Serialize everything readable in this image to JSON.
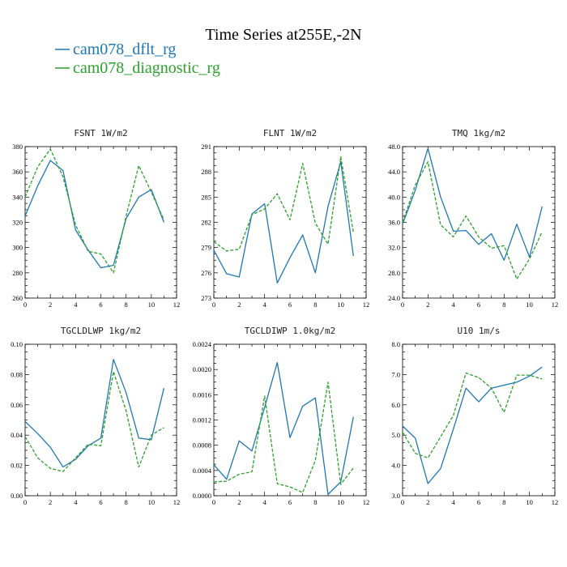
{
  "figure": {
    "title": "Time Series at255E,-2N",
    "legend": [
      {
        "label": "cam078_dflt_rg",
        "color": "#1f77b4",
        "dash": "none"
      },
      {
        "label": "cam078_diagnostic_rg",
        "color": "#2ca02c",
        "dash": "4,2"
      }
    ]
  },
  "chart_data": [
    {
      "type": "line",
      "title": "FSNT   1W/m2",
      "xlim": [
        0,
        12
      ],
      "xticks": [
        0,
        2,
        4,
        6,
        8,
        10,
        12
      ],
      "ylim": [
        260,
        380
      ],
      "yticks": [
        260,
        280,
        300,
        320,
        340,
        360,
        380
      ],
      "yticklabels": [
        "260",
        "280",
        "300",
        "320",
        "340",
        "360",
        "380"
      ],
      "x": [
        0,
        1,
        2,
        3,
        4,
        5,
        6,
        7,
        8,
        9,
        10,
        11
      ],
      "series": [
        {
          "name": "cam078_dflt_rg",
          "values": [
            325,
            349,
            369,
            361,
            314,
            298,
            284,
            286,
            323,
            340,
            346,
            320
          ]
        },
        {
          "name": "cam078_diagnostic_rg",
          "values": [
            340,
            364,
            378,
            356,
            318,
            297,
            295,
            280,
            325,
            365,
            344,
            322
          ]
        }
      ]
    },
    {
      "type": "line",
      "title": "FLNT   1W/m2",
      "xlim": [
        0,
        12
      ],
      "xticks": [
        0,
        2,
        4,
        6,
        8,
        10,
        12
      ],
      "ylim": [
        273,
        291
      ],
      "yticks": [
        273,
        276,
        279,
        282,
        285,
        288,
        291
      ],
      "yticklabels": [
        "273",
        "276",
        "279",
        "282",
        "285",
        "288",
        "291"
      ],
      "x": [
        0,
        1,
        2,
        3,
        4,
        5,
        6,
        7,
        8,
        9,
        10,
        11
      ],
      "series": [
        {
          "name": "cam078_dflt_rg",
          "values": [
            278.7,
            275.9,
            275.5,
            283.0,
            284.2,
            274.8,
            277.8,
            280.5,
            276.0,
            283.9,
            289.2,
            278.0
          ]
        },
        {
          "name": "cam078_diagnostic_rg",
          "values": [
            279.7,
            278.6,
            278.8,
            282.9,
            283.6,
            285.4,
            282.3,
            289.0,
            281.9,
            279.4,
            289.8,
            280.8
          ]
        }
      ]
    },
    {
      "type": "line",
      "title": "TMQ   1kg/m2",
      "xlim": [
        0,
        12
      ],
      "xticks": [
        0,
        2,
        4,
        6,
        8,
        10,
        12
      ],
      "ylim": [
        24,
        48
      ],
      "yticks": [
        24,
        28,
        32,
        36,
        40,
        44,
        48
      ],
      "yticklabels": [
        "24.0",
        "28.0",
        "32.0",
        "36.0",
        "40.0",
        "44.0",
        "48.0"
      ],
      "x": [
        0,
        1,
        2,
        3,
        4,
        5,
        6,
        7,
        8,
        9,
        10,
        11
      ],
      "series": [
        {
          "name": "cam078_dflt_rg",
          "values": [
            35.7,
            41.1,
            47.7,
            40.0,
            34.6,
            34.7,
            32.5,
            34.2,
            30.0,
            35.7,
            30.5,
            38.5
          ]
        },
        {
          "name": "cam078_diagnostic_rg",
          "values": [
            36.0,
            41.9,
            45.6,
            35.6,
            33.7,
            37.0,
            33.7,
            31.9,
            32.3,
            27.0,
            30.2,
            34.5
          ]
        }
      ]
    },
    {
      "type": "line",
      "title": "TGCLDLWP   1kg/m2",
      "xlim": [
        0,
        12
      ],
      "xticks": [
        0,
        2,
        4,
        6,
        8,
        10,
        12
      ],
      "ylim": [
        0,
        0.1
      ],
      "yticks": [
        0,
        0.02,
        0.04,
        0.06,
        0.08,
        0.1
      ],
      "yticklabels": [
        "0.00",
        "0.02",
        "0.04",
        "0.06",
        "0.08",
        "0.10"
      ],
      "x": [
        0,
        1,
        2,
        3,
        4,
        5,
        6,
        7,
        8,
        9,
        10,
        11
      ],
      "series": [
        {
          "name": "cam078_dflt_rg",
          "values": [
            0.049,
            0.041,
            0.032,
            0.019,
            0.024,
            0.033,
            0.038,
            0.09,
            0.068,
            0.038,
            0.037,
            0.071
          ]
        },
        {
          "name": "cam078_diagnostic_rg",
          "values": [
            0.039,
            0.025,
            0.018,
            0.016,
            0.025,
            0.034,
            0.033,
            0.082,
            0.056,
            0.019,
            0.04,
            0.045
          ]
        }
      ]
    },
    {
      "type": "line",
      "title": "TGCLDIWP   1.0kg/m2",
      "xlim": [
        0,
        12
      ],
      "xticks": [
        0,
        2,
        4,
        6,
        8,
        10,
        12
      ],
      "ylim": [
        0,
        0.0024
      ],
      "yticks": [
        0,
        0.0004,
        0.0008,
        0.0012,
        0.0016,
        0.002,
        0.0024
      ],
      "yticklabels": [
        "0.0000",
        "0.0004",
        "0.0008",
        "0.0012",
        "0.0016",
        "0.0020",
        "0.0024"
      ],
      "x": [
        0,
        1,
        2,
        3,
        4,
        5,
        6,
        7,
        8,
        9,
        10,
        11
      ],
      "series": [
        {
          "name": "cam078_dflt_rg",
          "values": [
            0.00049,
            0.00026,
            0.00087,
            0.00071,
            0.0014,
            0.00211,
            0.00092,
            0.00142,
            0.00155,
            2e-05,
            0.00022,
            0.00125
          ]
        },
        {
          "name": "cam078_diagnostic_rg",
          "values": [
            0.00022,
            0.00023,
            0.00034,
            0.00038,
            0.00158,
            0.00019,
            0.00014,
            5e-05,
            0.00056,
            0.0018,
            0.00018,
            0.00044
          ]
        }
      ]
    },
    {
      "type": "line",
      "title": "U10   1m/s",
      "xlim": [
        0,
        12
      ],
      "xticks": [
        0,
        2,
        4,
        6,
        8,
        10,
        12
      ],
      "ylim": [
        3,
        8
      ],
      "yticks": [
        3,
        4,
        5,
        6,
        7,
        8
      ],
      "yticklabels": [
        "3.0",
        "4.0",
        "5.0",
        "6.0",
        "7.0",
        "8.0"
      ],
      "x": [
        0,
        1,
        2,
        3,
        4,
        5,
        6,
        7,
        8,
        9,
        10,
        11
      ],
      "series": [
        {
          "name": "cam078_dflt_rg",
          "values": [
            5.3,
            4.9,
            3.4,
            3.9,
            5.2,
            6.55,
            6.1,
            6.55,
            6.65,
            6.75,
            6.95,
            7.25
          ]
        },
        {
          "name": "cam078_diagnostic_rg",
          "values": [
            5.1,
            4.4,
            4.25,
            4.95,
            5.65,
            7.05,
            6.9,
            6.55,
            5.75,
            6.98,
            6.98,
            6.85
          ]
        }
      ]
    }
  ]
}
